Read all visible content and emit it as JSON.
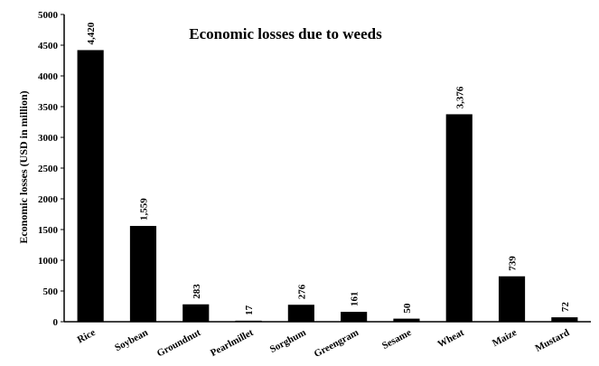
{
  "chart_data": {
    "type": "bar",
    "title": "Economic losses due to weeds",
    "xlabel": "",
    "ylabel": "Economic losses (USD in million)",
    "ylim": [
      0,
      5000
    ],
    "yticks": [
      "0",
      "500",
      "1000",
      "1500",
      "2000",
      "2500",
      "3000",
      "3500",
      "4000",
      "4500",
      "5000"
    ],
    "categories": [
      "Rice",
      "Soybean",
      "Groundnut",
      "Pearlmillet",
      "Sorghum",
      "Greengram",
      "Sesame",
      "Wheat",
      "Maize",
      "Mustard"
    ],
    "values": [
      4420,
      1559,
      283,
      17,
      276,
      161,
      50,
      3376,
      739,
      72
    ],
    "data_labels": [
      "4,420",
      "1,559",
      "283",
      "17",
      "276",
      "161",
      "50",
      "3,376",
      "739",
      "72"
    ],
    "bar_color": "#000000",
    "grid": false,
    "legend": "none"
  }
}
